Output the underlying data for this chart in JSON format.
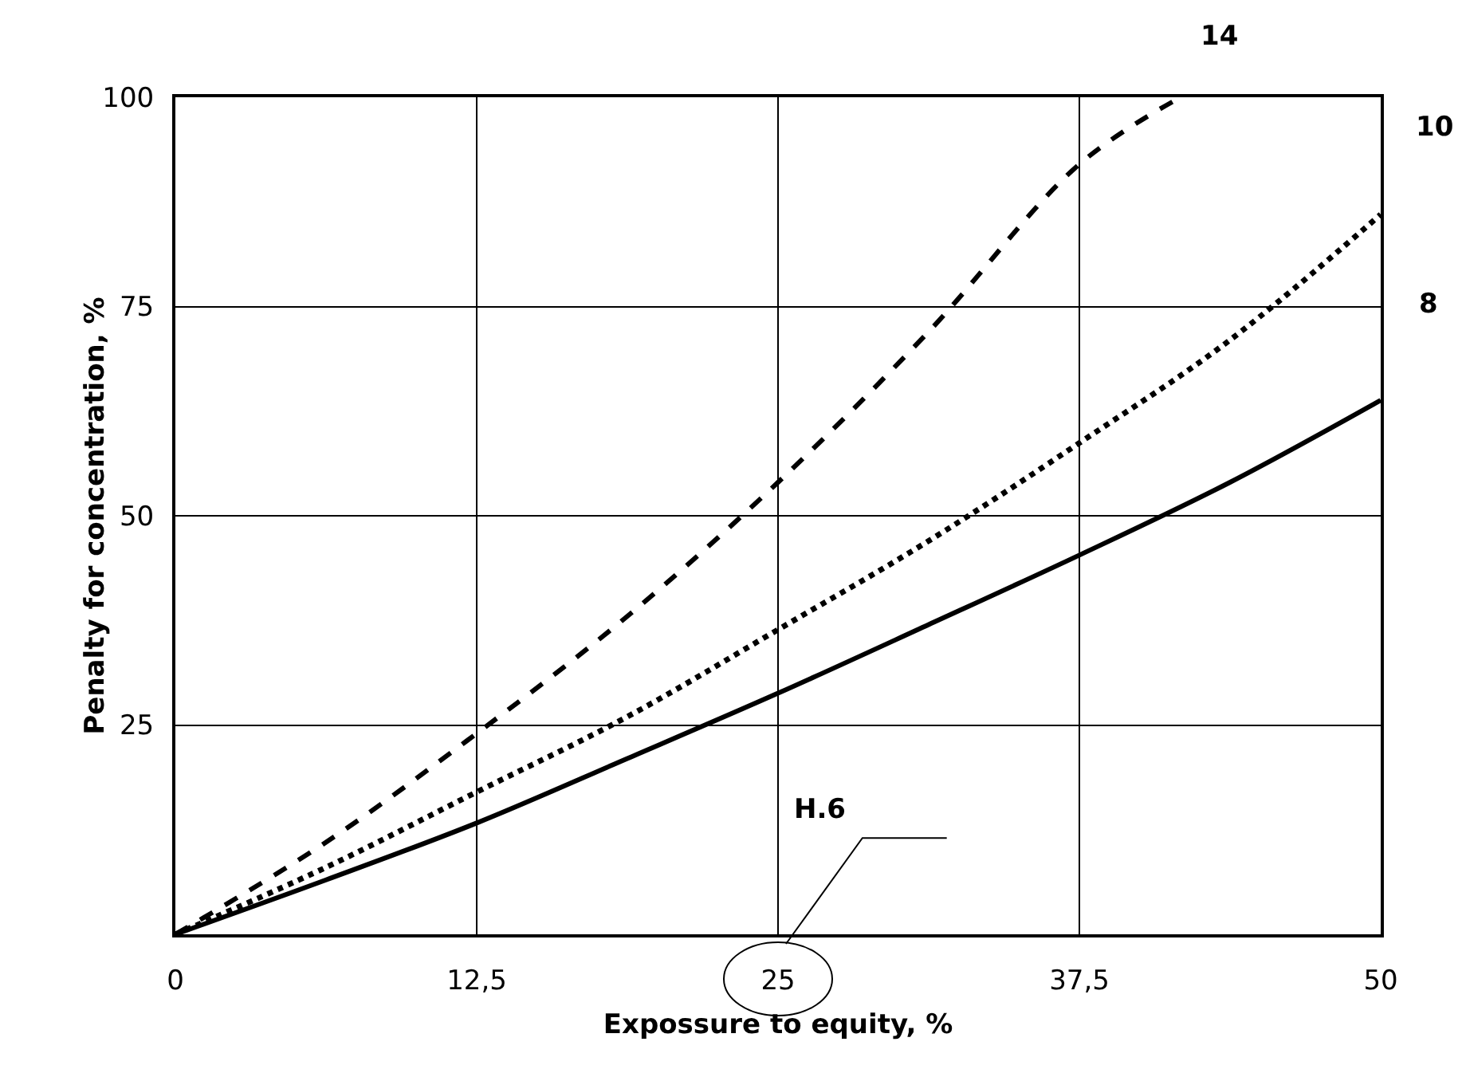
{
  "chart_data": {
    "type": "line",
    "xlabel": "Expossure to equity, %",
    "ylabel": "Penalty for concentration, %",
    "annotations": [
      "H.6"
    ],
    "xlim": [
      0,
      50
    ],
    "ylim": [
      0,
      100
    ],
    "xticks": [
      0,
      {
        "value": 12.5,
        "label": "12,5"
      },
      25,
      {
        "value": 37.5,
        "label": "37,5"
      },
      50
    ],
    "yticks": [
      {
        "value": 0,
        "label": null
      },
      25,
      50,
      75,
      100
    ],
    "grid": true,
    "legend": false,
    "marker": "none",
    "series": [
      {
        "name": "14",
        "color": "#000000",
        "line_style": "dashed",
        "x": [
          0,
          6.25,
          12.5,
          18.75,
          25,
          31.25,
          37.5,
          41.7
        ],
        "values": [
          0,
          11,
          24,
          38,
          54,
          72,
          92,
          100
        ]
      },
      {
        "name": "10",
        "color": "#000000",
        "line_style": "dotted",
        "x": [
          0,
          6.25,
          12.5,
          18.75,
          25,
          31.25,
          37.5,
          43.75,
          50
        ],
        "values": [
          0,
          8,
          17,
          26,
          36.4,
          47,
          58.7,
          71,
          86
        ]
      },
      {
        "name": "8",
        "color": "#000000",
        "line_style": "solid",
        "x": [
          0,
          6.25,
          12.5,
          18.75,
          25,
          31.25,
          37.5,
          43.75,
          50
        ],
        "values": [
          0,
          6.5,
          13.3,
          21,
          28.8,
          37,
          45.3,
          54,
          63.8
        ]
      }
    ]
  }
}
